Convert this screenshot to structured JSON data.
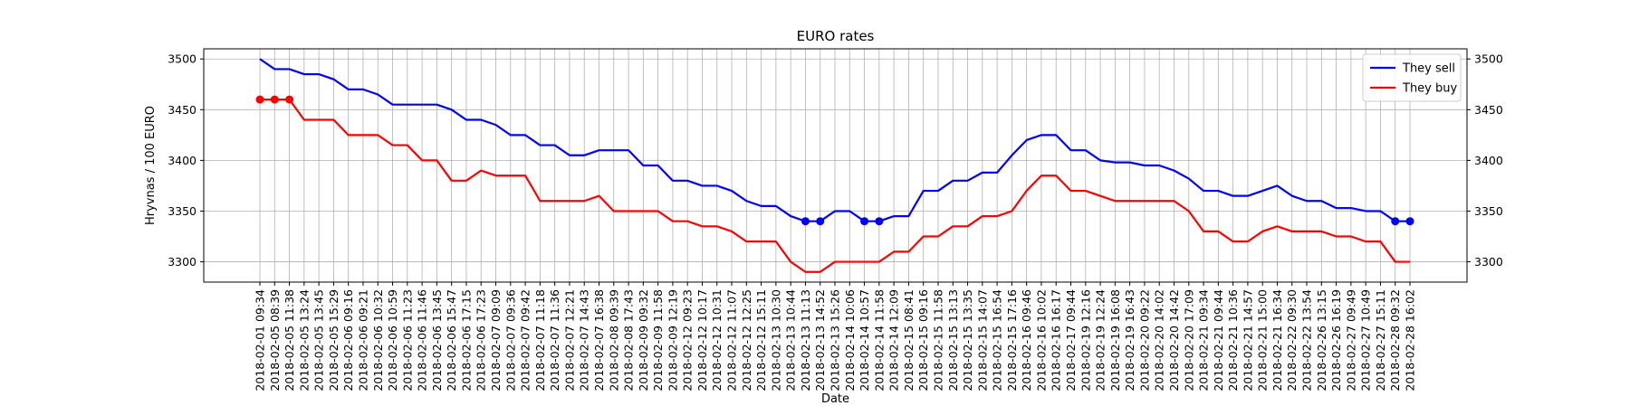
{
  "chart_data": {
    "type": "line",
    "title": "EURO rates",
    "xlabel": "Date",
    "ylabel": "Hryvnas / 100 EURO",
    "ylim": [
      3280,
      3510
    ],
    "yticks": [
      3300,
      3350,
      3400,
      3450,
      3500
    ],
    "secondary_y_axis": true,
    "grid": true,
    "legend_position": "top-right",
    "x": [
      "2018-02-01 09:34",
      "2018-02-05 08:39",
      "2018-02-05 11:38",
      "2018-02-05 13:24",
      "2018-02-05 13:45",
      "2018-02-05 15:29",
      "2018-02-06 09:16",
      "2018-02-06 09:21",
      "2018-02-06 10:32",
      "2018-02-06 10:59",
      "2018-02-06 11:23",
      "2018-02-06 11:46",
      "2018-02-06 13:45",
      "2018-02-06 15:47",
      "2018-02-06 17:15",
      "2018-02-06 17:23",
      "2018-02-07 09:09",
      "2018-02-07 09:36",
      "2018-02-07 09:42",
      "2018-02-07 11:18",
      "2018-02-07 11:36",
      "2018-02-07 12:21",
      "2018-02-07 14:43",
      "2018-02-07 16:38",
      "2018-02-08 09:39",
      "2018-02-08 17:43",
      "2018-02-09 09:32",
      "2018-02-09 11:58",
      "2018-02-09 12:19",
      "2018-02-12 09:23",
      "2018-02-12 10:17",
      "2018-02-12 10:31",
      "2018-02-12 11:07",
      "2018-02-12 12:25",
      "2018-02-12 15:11",
      "2018-02-13 10:30",
      "2018-02-13 10:44",
      "2018-02-13 11:13",
      "2018-02-13 14:52",
      "2018-02-13 15:26",
      "2018-02-14 10:06",
      "2018-02-14 10:57",
      "2018-02-14 11:58",
      "2018-02-14 12:09",
      "2018-02-15 08:41",
      "2018-02-15 09:16",
      "2018-02-15 11:58",
      "2018-02-15 13:13",
      "2018-02-15 13:35",
      "2018-02-15 14:07",
      "2018-02-15 16:54",
      "2018-02-15 17:16",
      "2018-02-16 09:46",
      "2018-02-16 10:02",
      "2018-02-16 16:17",
      "2018-02-17 09:44",
      "2018-02-19 12:16",
      "2018-02-19 12:24",
      "2018-02-19 16:08",
      "2018-02-19 16:43",
      "2018-02-20 09:22",
      "2018-02-20 14:02",
      "2018-02-20 14:42",
      "2018-02-20 17:09",
      "2018-02-21 09:34",
      "2018-02-21 09:44",
      "2018-02-21 10:36",
      "2018-02-21 14:57",
      "2018-02-21 15:00",
      "2018-02-21 16:34",
      "2018-02-22 09:30",
      "2018-02-22 13:54",
      "2018-02-26 13:15",
      "2018-02-26 16:19",
      "2018-02-27 09:49",
      "2018-02-27 10:49",
      "2018-02-27 15:11",
      "2018-02-28 09:32",
      "2018-02-28 16:02"
    ],
    "series": [
      {
        "name": "They sell",
        "color": "#0000ff",
        "values": [
          3500,
          3490,
          3490,
          3485,
          3485,
          3480,
          3470,
          3470,
          3465,
          3455,
          3455,
          3455,
          3455,
          3450,
          3440,
          3440,
          3435,
          3425,
          3425,
          3415,
          3415,
          3405,
          3405,
          3410,
          3410,
          3410,
          3395,
          3395,
          3380,
          3380,
          3375,
          3375,
          3370,
          3360,
          3355,
          3355,
          3345,
          3340,
          3340,
          3350,
          3350,
          3340,
          3340,
          3345,
          3345,
          3370,
          3370,
          3380,
          3380,
          3388,
          3388,
          3405,
          3420,
          3425,
          3425,
          3410,
          3410,
          3400,
          3398,
          3398,
          3395,
          3395,
          3390,
          3382,
          3370,
          3370,
          3365,
          3365,
          3370,
          3375,
          3365,
          3360,
          3360,
          3353,
          3353,
          3350,
          3350,
          3340,
          3340
        ],
        "markers_at": [
          37,
          38,
          41,
          42,
          77,
          78
        ]
      },
      {
        "name": "They buy",
        "color": "#ff0000",
        "values": [
          3460,
          3460,
          3460,
          3440,
          3440,
          3440,
          3425,
          3425,
          3425,
          3415,
          3415,
          3400,
          3400,
          3380,
          3380,
          3390,
          3385,
          3385,
          3385,
          3360,
          3360,
          3360,
          3360,
          3365,
          3350,
          3350,
          3350,
          3350,
          3340,
          3340,
          3335,
          3335,
          3330,
          3320,
          3320,
          3320,
          3300,
          3290,
          3290,
          3300,
          3300,
          3300,
          3300,
          3310,
          3310,
          3325,
          3325,
          3335,
          3335,
          3345,
          3345,
          3350,
          3370,
          3385,
          3385,
          3370,
          3370,
          3365,
          3360,
          3360,
          3360,
          3360,
          3360,
          3350,
          3330,
          3330,
          3320,
          3320,
          3330,
          3335,
          3330,
          3330,
          3330,
          3325,
          3325,
          3320,
          3320,
          3300,
          3300
        ],
        "markers_at": [
          0,
          1,
          2
        ]
      }
    ]
  }
}
